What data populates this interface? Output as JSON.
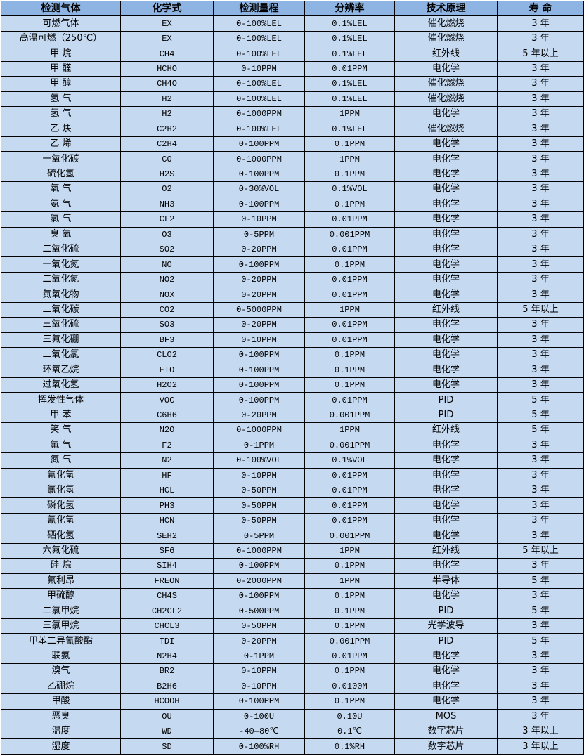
{
  "colors": {
    "header_bg": "#8DB4E2",
    "cell_bg": "#C5D9F1",
    "border": "#000000"
  },
  "table": {
    "headers": [
      "检测气体",
      "化学式",
      "检测量程",
      "分辨率",
      "技术原理",
      "寿 命"
    ],
    "rows": [
      [
        "可燃气体",
        "EX",
        "0-100%LEL",
        "0.1%LEL",
        "催化燃烧",
        "3 年"
      ],
      [
        "高温可燃（250℃）",
        "EX",
        "0-100%LEL",
        "0.1%LEL",
        "催化燃烧",
        "3 年"
      ],
      [
        "甲 烷",
        "CH4",
        "0-100%LEL",
        "0.1%LEL",
        "红外线",
        "5 年以上"
      ],
      [
        "甲 醛",
        "HCHO",
        "0-10PPM",
        "0.01PPM",
        "电化学",
        "3 年"
      ],
      [
        "甲 醇",
        "CH4O",
        "0-100%LEL",
        "0.1%LEL",
        "催化燃烧",
        "3 年"
      ],
      [
        "氢 气",
        "H2",
        "0-100%LEL",
        "0.1%LEL",
        "催化燃烧",
        "3 年"
      ],
      [
        "氢 气",
        "H2",
        "0-1000PPM",
        "1PPM",
        "电化学",
        "3 年"
      ],
      [
        "乙 炔",
        "C2H2",
        "0-100%LEL",
        "0.1%LEL",
        "催化燃烧",
        "3 年"
      ],
      [
        "乙 烯",
        "C2H4",
        "0-100PPM",
        "0.1PPM",
        "电化学",
        "3 年"
      ],
      [
        "一氧化碳",
        "CO",
        "0-1000PPM",
        "1PPM",
        "电化学",
        "3 年"
      ],
      [
        "硫化氢",
        "H2S",
        "0-100PPM",
        "0.1PPM",
        "电化学",
        "3 年"
      ],
      [
        "氧 气",
        "O2",
        "0-30%VOL",
        "0.1%VOL",
        "电化学",
        "3 年"
      ],
      [
        "氨 气",
        "NH3",
        "0-100PPM",
        "0.1PPM",
        "电化学",
        "3 年"
      ],
      [
        "氯 气",
        "CL2",
        "0-10PPM",
        "0.01PPM",
        "电化学",
        "3 年"
      ],
      [
        "臭 氧",
        "O3",
        "0-5PPM",
        "0.001PPM",
        "电化学",
        "3 年"
      ],
      [
        "二氧化硫",
        "SO2",
        "0-20PPM",
        "0.01PPM",
        "电化学",
        "3 年"
      ],
      [
        "一氧化氮",
        "NO",
        "0-100PPM",
        "0.1PPM",
        "电化学",
        "3 年"
      ],
      [
        "二氧化氮",
        "NO2",
        "0-20PPM",
        "0.01PPM",
        "电化学",
        "3 年"
      ],
      [
        "氮氧化物",
        "NOX",
        "0-20PPM",
        "0.01PPM",
        "电化学",
        "3 年"
      ],
      [
        "二氧化碳",
        "CO2",
        "0-5000PPM",
        "1PPM",
        "红外线",
        "5 年以上"
      ],
      [
        "三氧化硫",
        "SO3",
        "0-20PPM",
        "0.01PPM",
        "电化学",
        "3 年"
      ],
      [
        "三氟化硼",
        "BF3",
        "0-10PPM",
        "0.01PPM",
        "电化学",
        "3 年"
      ],
      [
        "二氧化氯",
        "CLO2",
        "0-100PPM",
        "0.1PPM",
        "电化学",
        "3 年"
      ],
      [
        "环氧乙烷",
        "ETO",
        "0-100PPM",
        "0.1PPM",
        "电化学",
        "3 年"
      ],
      [
        "过氧化氢",
        "H2O2",
        "0-100PPM",
        "0.1PPM",
        "电化学",
        "3 年"
      ],
      [
        "挥发性气体",
        "VOC",
        "0-100PPM",
        "0.01PPM",
        "PID",
        "5 年"
      ],
      [
        "甲 苯",
        "C6H6",
        "0-20PPM",
        "0.001PPM",
        "PID",
        "5 年"
      ],
      [
        "笑 气",
        "N2O",
        "0-1000PPM",
        "1PPM",
        "红外线",
        "5 年"
      ],
      [
        "氟 气",
        "F2",
        "0-1PPM",
        "0.001PPM",
        "电化学",
        "3 年"
      ],
      [
        "氮 气",
        "N2",
        "0-100%VOL",
        "0.1%VOL",
        "电化学",
        "3 年"
      ],
      [
        "氟化氢",
        "HF",
        "0-10PPM",
        "0.01PPM",
        "电化学",
        "3 年"
      ],
      [
        "氯化氢",
        "HCL",
        "0-50PPM",
        "0.01PPM",
        "电化学",
        "3 年"
      ],
      [
        "磷化氢",
        "PH3",
        "0-50PPM",
        "0.01PPM",
        "电化学",
        "3 年"
      ],
      [
        "氰化氢",
        "HCN",
        "0-50PPM",
        "0.01PPM",
        "电化学",
        "3 年"
      ],
      [
        "硒化氢",
        "SEH2",
        "0-5PPM",
        "0.001PPM",
        "电化学",
        "3 年"
      ],
      [
        "六氟化硫",
        "SF6",
        "0-1000PPM",
        "1PPM",
        "红外线",
        "5 年以上"
      ],
      [
        "硅 烷",
        "SIH4",
        "0-100PPM",
        "0.1PPM",
        "电化学",
        "3 年"
      ],
      [
        "氟利昂",
        "FREON",
        "0-2000PPM",
        "1PPM",
        "半导体",
        "5 年"
      ],
      [
        "甲硫醇",
        "CH4S",
        "0-100PPM",
        "0.1PPM",
        "电化学",
        "3 年"
      ],
      [
        "二氯甲烷",
        "CH2CL2",
        "0-500PPM",
        "0.1PPM",
        "PID",
        "5 年"
      ],
      [
        "三氯甲烷",
        "CHCL3",
        "0-50PPM",
        "0.1PPM",
        "光学波导",
        "3 年"
      ],
      [
        "甲苯二异氰酸酯",
        "TDI",
        "0-20PPM",
        "0.001PPM",
        "PID",
        "5 年"
      ],
      [
        "联氨",
        "N2H4",
        "0-1PPM",
        "0.01PPM",
        "电化学",
        "3 年"
      ],
      [
        "溴气",
        "BR2",
        "0-10PPM",
        "0.1PPM",
        "电化学",
        "3 年"
      ],
      [
        "乙硼烷",
        "B2H6",
        "0-10PPM",
        "0.0100M",
        "电化学",
        "3 年"
      ],
      [
        "甲酸",
        "HCOOH",
        "0-100PPM",
        "0.1PPM",
        "电化学",
        "3 年"
      ],
      [
        "恶臭",
        "OU",
        "0-100U",
        "0.10U",
        "MOS",
        "3 年"
      ],
      [
        "温度",
        "WD",
        "-40—80℃",
        "0.1℃",
        "数字芯片",
        "3 年以上"
      ],
      [
        "湿度",
        "SD",
        "0-100%RH",
        "0.1%RH",
        "数字芯片",
        "3 年以上"
      ]
    ]
  }
}
